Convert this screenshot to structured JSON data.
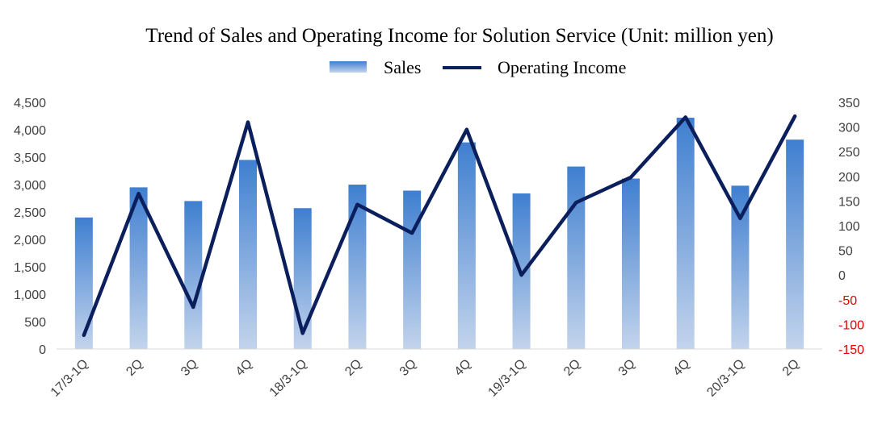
{
  "chart_data": {
    "type": "bar",
    "title": "Trend of Sales and Operating  Income for Solution Service (Unit: million yen)",
    "categories": [
      "17/3-1Q",
      "2Q",
      "3Q",
      "4Q",
      "18/3-1Q",
      "2Q",
      "3Q",
      "4Q",
      "19/3-1Q",
      "2Q",
      "3Q",
      "4Q",
      "20/3-1Q",
      "2Q"
    ],
    "series": [
      {
        "name": "Sales",
        "type": "bar",
        "axis": "left",
        "color": "#3f7fd0",
        "color_light": "#c3d4ec",
        "values": [
          2400,
          2950,
          2700,
          3450,
          2570,
          3000,
          2890,
          3770,
          2840,
          3330,
          3110,
          4220,
          2980,
          3820
        ]
      },
      {
        "name": "Operating Income",
        "type": "line",
        "axis": "right",
        "color": "#0b1f5c",
        "values": [
          -122,
          165,
          -65,
          310,
          -118,
          143,
          85,
          295,
          0,
          147,
          198,
          320,
          115,
          322
        ]
      }
    ],
    "y_left": {
      "min": 0,
      "max": 4500,
      "ticks": [
        "0",
        "500",
        "1,000",
        "1,500",
        "2,000",
        "2,500",
        "3,000",
        "3,500",
        "4,000",
        "4,500"
      ]
    },
    "y_right": {
      "min": -150,
      "max": 350,
      "ticks": [
        "-150",
        "-100",
        "-50",
        "0",
        "50",
        "100",
        "150",
        "200",
        "250",
        "300",
        "350"
      ],
      "negative_color": "#e00000"
    },
    "legend": {
      "position": "top-center",
      "items": [
        {
          "label": "Sales",
          "kind": "bar"
        },
        {
          "label": "Operating Income",
          "kind": "line"
        }
      ]
    },
    "grid": false
  }
}
